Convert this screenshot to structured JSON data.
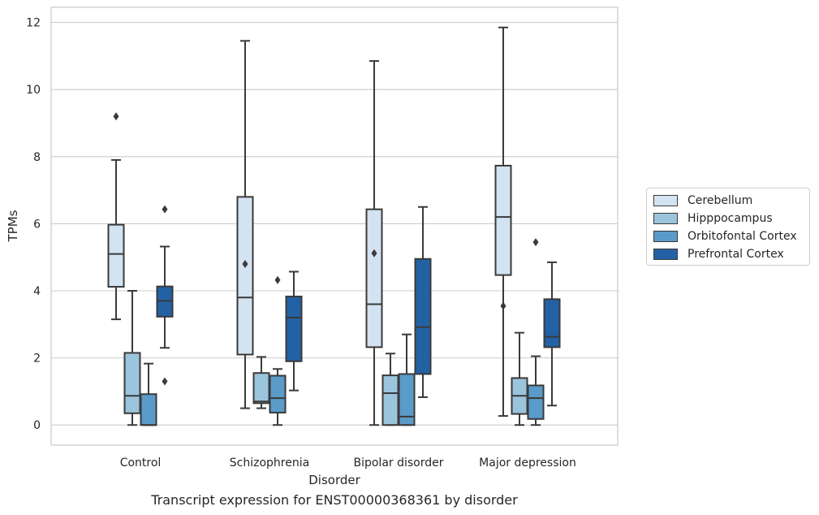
{
  "caption": "Transcript expression for ENST00000368361 by disorder",
  "chart_data": {
    "type": "box",
    "xlabel": "Disorder",
    "ylabel": "TPMs",
    "ylim": [
      -0.6,
      12.45
    ],
    "yticks": [
      0,
      2,
      4,
      6,
      8,
      10,
      12
    ],
    "grid": "horizontal",
    "legend_position": "right",
    "categories": [
      "Control",
      "Schizophrenia",
      "Bipolar disorder",
      "Major depression"
    ],
    "series": [
      {
        "name": "Cerebellum",
        "color": "#d3e3f1",
        "boxes": [
          {
            "q1": 4.12,
            "median": 5.1,
            "q3": 5.97,
            "whisker_low": 3.15,
            "whisker_high": 7.9,
            "outliers": [
              9.2
            ]
          },
          {
            "q1": 2.1,
            "median": 3.8,
            "q3": 6.8,
            "whisker_low": 0.5,
            "whisker_high": 11.45,
            "outliers": [
              4.8
            ]
          },
          {
            "q1": 2.32,
            "median": 3.6,
            "q3": 6.43,
            "whisker_low": 0.0,
            "whisker_high": 10.85,
            "outliers": [
              5.12
            ]
          },
          {
            "q1": 4.47,
            "median": 6.2,
            "q3": 7.73,
            "whisker_low": 0.27,
            "whisker_high": 11.85,
            "outliers": [
              3.55
            ]
          }
        ]
      },
      {
        "name": "Hipppocampus",
        "color": "#9bc4dd",
        "boxes": [
          {
            "q1": 0.35,
            "median": 0.87,
            "q3": 2.15,
            "whisker_low": 0.0,
            "whisker_high": 4.0,
            "outliers": []
          },
          {
            "q1": 0.65,
            "median": 0.7,
            "q3": 1.55,
            "whisker_low": 0.5,
            "whisker_high": 2.03,
            "outliers": []
          },
          {
            "q1": 0.0,
            "median": 0.95,
            "q3": 1.48,
            "whisker_low": 0.0,
            "whisker_high": 2.13,
            "outliers": []
          },
          {
            "q1": 0.33,
            "median": 0.87,
            "q3": 1.4,
            "whisker_low": 0.0,
            "whisker_high": 2.75,
            "outliers": []
          }
        ]
      },
      {
        "name": "Orbitofontal Cortex",
        "color": "#5a9bc9",
        "boxes": [
          {
            "q1": 0.0,
            "median": 0.0,
            "q3": 0.92,
            "whisker_low": 0.0,
            "whisker_high": 1.83,
            "outliers": []
          },
          {
            "q1": 0.37,
            "median": 0.8,
            "q3": 1.47,
            "whisker_low": 0.0,
            "whisker_high": 1.67,
            "outliers": [
              4.32
            ]
          },
          {
            "q1": 0.0,
            "median": 0.25,
            "q3": 1.52,
            "whisker_low": 0.0,
            "whisker_high": 2.7,
            "outliers": []
          },
          {
            "q1": 0.18,
            "median": 0.8,
            "q3": 1.18,
            "whisker_low": 0.0,
            "whisker_high": 2.05,
            "outliers": [
              5.45
            ]
          }
        ]
      },
      {
        "name": "Prefrontal Cortex",
        "color": "#2361a5",
        "boxes": [
          {
            "q1": 3.23,
            "median": 3.7,
            "q3": 4.13,
            "whisker_low": 2.3,
            "whisker_high": 5.32,
            "outliers": [
              6.43,
              1.3
            ]
          },
          {
            "q1": 1.9,
            "median": 3.2,
            "q3": 3.83,
            "whisker_low": 1.03,
            "whisker_high": 4.57,
            "outliers": []
          },
          {
            "q1": 1.52,
            "median": 2.92,
            "q3": 4.95,
            "whisker_low": 0.83,
            "whisker_high": 6.5,
            "outliers": []
          },
          {
            "q1": 2.32,
            "median": 2.63,
            "q3": 3.75,
            "whisker_low": 0.58,
            "whisker_high": 4.85,
            "outliers": []
          }
        ]
      }
    ]
  }
}
